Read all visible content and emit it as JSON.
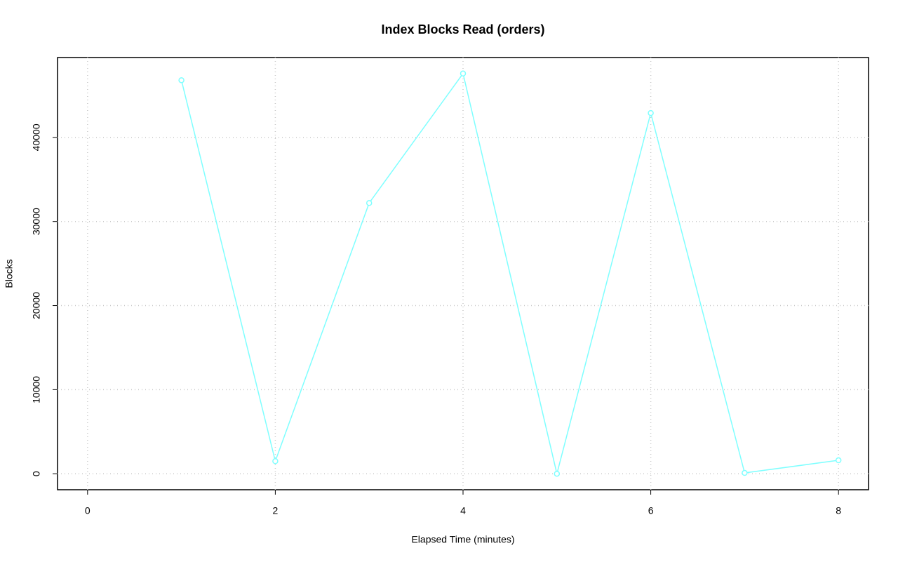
{
  "chart_data": {
    "type": "line",
    "title": "Index Blocks Read (orders)",
    "x_label": "Elapsed Time (minutes)",
    "y_label": "Blocks",
    "x": [
      1,
      2,
      3,
      4,
      5,
      6,
      7,
      8
    ],
    "series": [
      {
        "color": "#7fffff",
        "values": [
          46800,
          1500,
          32200,
          47600,
          0,
          42900,
          100,
          1600
        ]
      }
    ],
    "xlim": [
      -0.32,
      8.32
    ],
    "xticks": [
      0,
      2,
      4,
      6,
      8
    ],
    "ylim": [
      -1900,
      49500
    ],
    "yticks": [
      0,
      10000,
      20000,
      30000,
      40000
    ],
    "grid": true
  }
}
